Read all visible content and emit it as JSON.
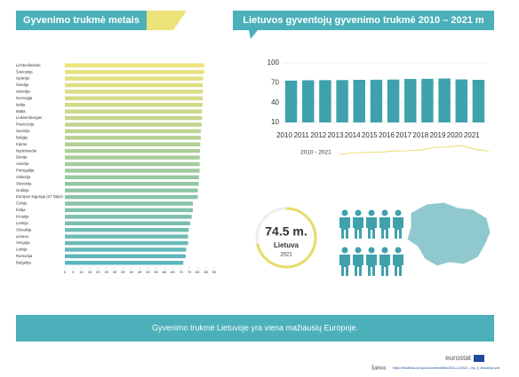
{
  "header_left": "Gyvenimo trukmė metais",
  "header_right": "Lietuvos gyventojų gyvenimo trukmė 2010 – 2021 m",
  "chart_data": [
    {
      "type": "hbar",
      "categories": [
        "Lichtenšteinas",
        "Šveicarija",
        "Ispanija",
        "Švedija",
        "Islandija",
        "Norvegija",
        "Italija",
        "Malta",
        "Liuksemburgas",
        "Prancūzija",
        "Suomija",
        "Belgija",
        "Kipras",
        "Nyderlandai",
        "Danija",
        "Austrija",
        "Portugalija",
        "Vokietija",
        "Slovėnija",
        "Graikija",
        "Europos Sąjunga (27 šalys)",
        "Čekija",
        "Estija",
        "Kroatija",
        "Lenkija",
        "Slovakija",
        "Lietuva",
        "Vengrija",
        "Latvija",
        "Rumunija",
        "Bulgarija"
      ],
      "values": [
        84.0,
        83.9,
        83.3,
        83.2,
        83.2,
        83.2,
        82.9,
        82.7,
        82.7,
        82.4,
        81.9,
        81.9,
        81.6,
        81.4,
        81.3,
        81.3,
        81.2,
        80.8,
        80.7,
        80.2,
        80.1,
        77.2,
        77.2,
        76.4,
        75.5,
        74.6,
        74.2,
        74.3,
        73.1,
        72.8,
        71.4
      ],
      "color_start": "#ece27a",
      "color_end": "#5ab5bd",
      "xlim": [
        0,
        90
      ],
      "xticks": [
        0,
        5,
        10,
        15,
        20,
        25,
        30,
        35,
        40,
        45,
        50,
        55,
        60,
        65,
        70,
        75,
        80,
        85,
        90
      ]
    },
    {
      "type": "bar",
      "categories": [
        "2010",
        "2011",
        "2012",
        "2013",
        "2014",
        "2015",
        "2016",
        "2017",
        "2018",
        "2019",
        "2020",
        "2021"
      ],
      "values": [
        73.3,
        73.8,
        74.0,
        74.1,
        74.5,
        74.6,
        74.9,
        75.8,
        76.0,
        76.5,
        75.1,
        74.5
      ],
      "color": "#3fa1ab",
      "line_color": "#e8dc6a",
      "line_label": "2010 - 2021",
      "ylim": [
        10,
        100
      ],
      "yticks": [
        10,
        40,
        70,
        100
      ],
      "grid": true
    }
  ],
  "highlight": {
    "value": 74.5,
    "value_label": "74.5 m.",
    "name": "Lietuva",
    "year": "2021"
  },
  "banner": "Gyvenimo trukmė Lietuvoje yra viena mažiausių Europoje.",
  "logo": "eurostat",
  "source_label": "Šaltinis:",
  "source_url": "https://healthus.europa.eu/content/files/2021-12/2021_chp_lt_lithuanian.pdf"
}
